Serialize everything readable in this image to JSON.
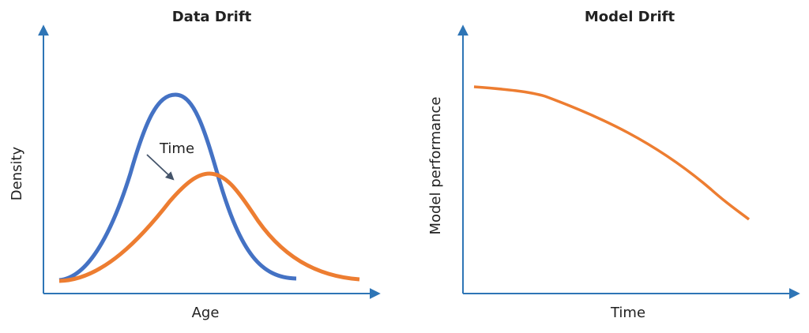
{
  "panels": [
    {
      "title": "Data Drift",
      "y_label": "Density",
      "x_label": "Age",
      "annotation": "Time"
    },
    {
      "title": "Model Drift",
      "y_label": "Model performance",
      "x_label": "Time"
    }
  ]
}
